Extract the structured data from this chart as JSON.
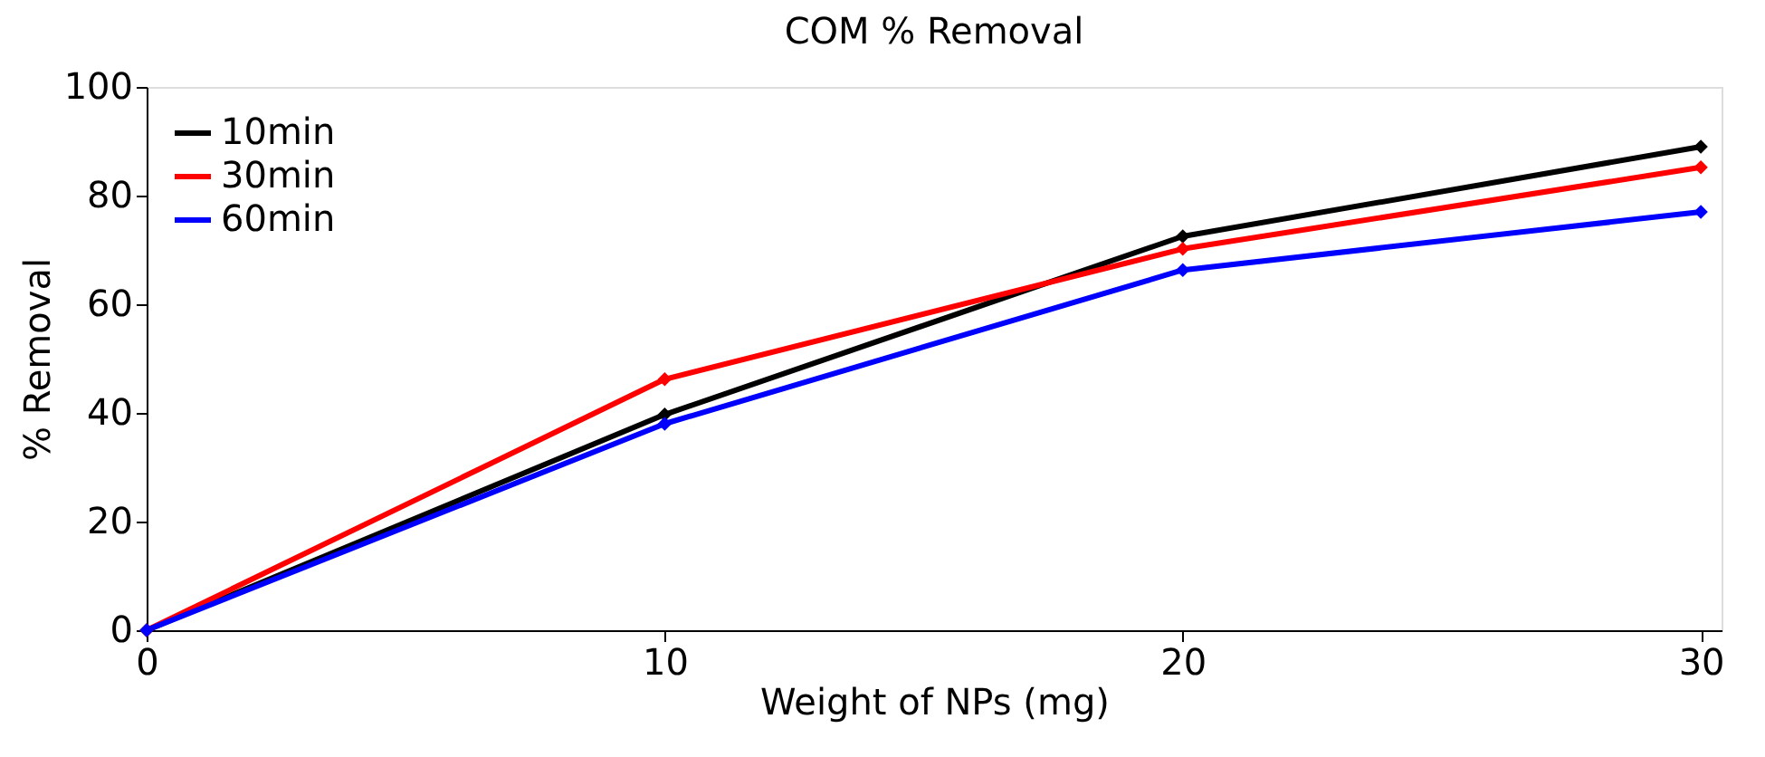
{
  "chart_data": {
    "type": "line",
    "title": "COM % Removal",
    "xlabel": "Weight of NPs (mg)",
    "ylabel": "% Removal",
    "x": [
      0,
      10,
      20,
      30
    ],
    "series": [
      {
        "name": "10min",
        "color": "#000000",
        "values": [
          0,
          39.7,
          72.5,
          89
        ]
      },
      {
        "name": "30min",
        "color": "#ff0000",
        "values": [
          0,
          46.2,
          70.2,
          85.2
        ]
      },
      {
        "name": "60min",
        "color": "#0000ff",
        "values": [
          0,
          38,
          66.3,
          77
        ]
      }
    ],
    "xlim": [
      0,
      30.4
    ],
    "ylim": [
      0,
      100
    ],
    "xticks": [
      0,
      10,
      20,
      30
    ],
    "yticks": [
      0,
      20,
      40,
      60,
      80,
      100
    ],
    "grid": false,
    "legend": "top left",
    "marker": "diamond",
    "line_style": "solid"
  }
}
